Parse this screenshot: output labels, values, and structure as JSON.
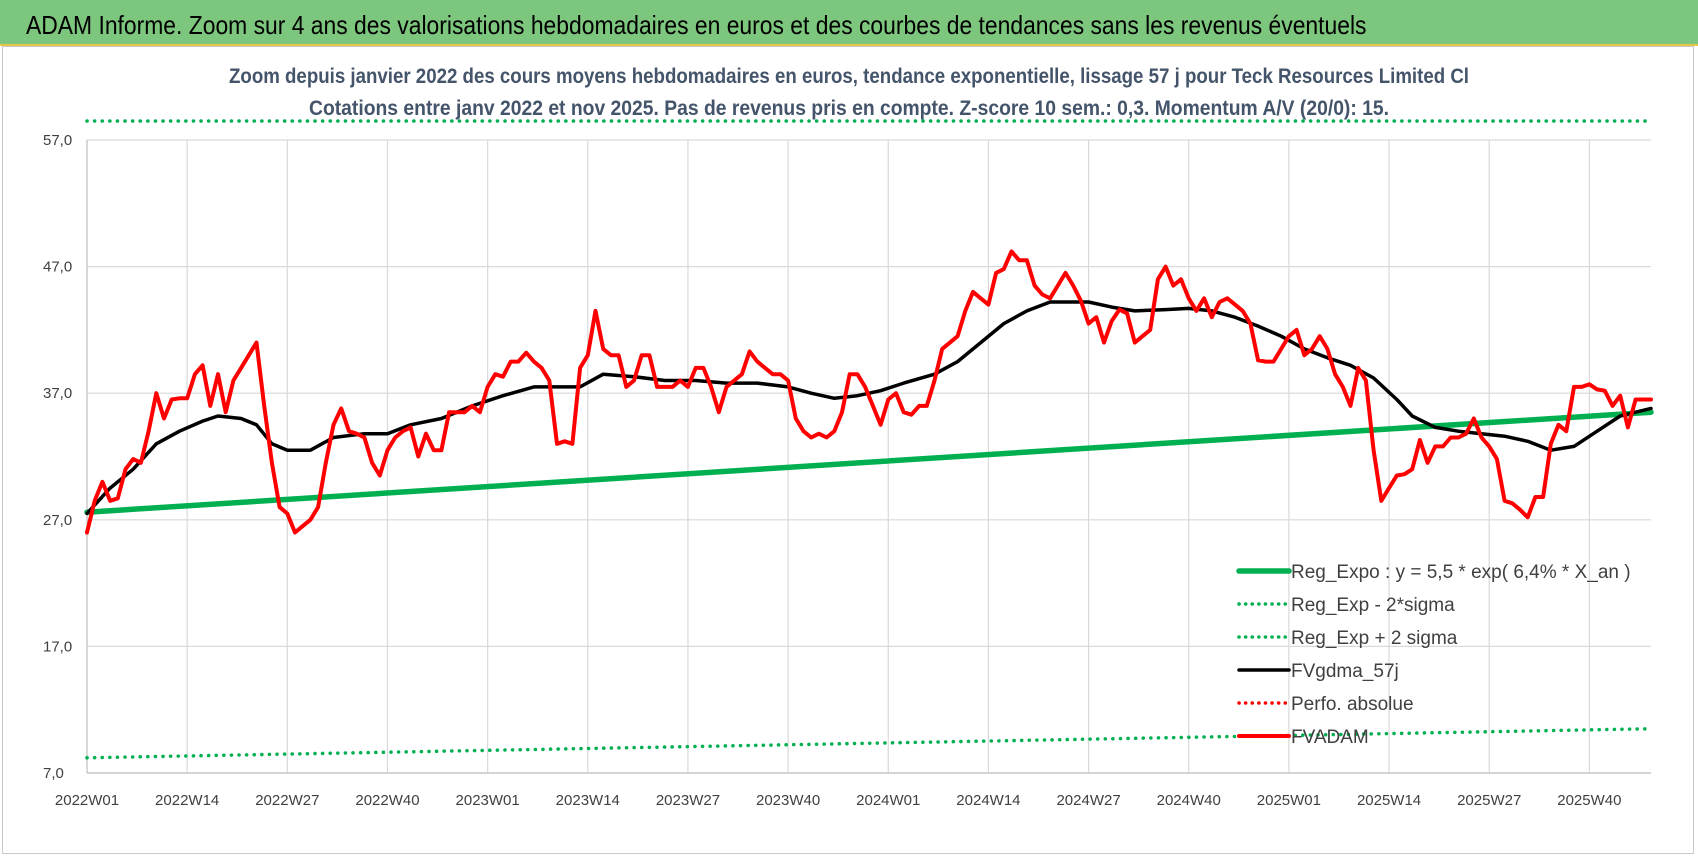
{
  "banner": {
    "title": "ADAM Informe. Zoom sur 4 ans des valorisations hebdomadaires en euros et des courbes de tendances sans les revenus éventuels"
  },
  "colors": {
    "banner_bg": "#7dc67d",
    "regression": "#00b050",
    "moving_avg": "#000000",
    "price": "#ff0000",
    "perf": "#ff0000",
    "subtitle": "#44546a",
    "grid": "#d9d9d9"
  },
  "chart_data": {
    "type": "line",
    "title_line1": "Zoom depuis janvier 2022 des cours moyens hebdomadaires en euros, tendance exponentielle, lissage 57 j pour Teck Resources Limited Cl",
    "title_line2": "Cotations entre janv 2022 et nov 2025. Pas de revenus pris en compte. Z-score 10 sem.: 0,3. Momentum A/V (20/0): 15.",
    "xlabel": "",
    "ylabel": "",
    "ylim": [
      7.0,
      57.0
    ],
    "y_ticks": [
      "57,0",
      "47,0",
      "37,0",
      "27,0",
      "17,0",
      "7,0"
    ],
    "y_tick_values": [
      57,
      47,
      37,
      27,
      17,
      7
    ],
    "x_range": [
      0,
      203
    ],
    "x_ticks": [
      "2022W01",
      "2022W14",
      "2022W27",
      "2022W40",
      "2023W01",
      "2023W14",
      "2023W27",
      "2023W40",
      "2024W01",
      "2024W14",
      "2024W27",
      "2024W40",
      "2025W01",
      "2025W14",
      "2025W27",
      "2025W40"
    ],
    "x_tick_positions": [
      0,
      13,
      26,
      39,
      52,
      65,
      78,
      91,
      104,
      117,
      130,
      143,
      156,
      169,
      182,
      195
    ],
    "legend_position": "bottom-right",
    "series": [
      {
        "name": "Reg_Expo : y = 5,5 * exp( 6,4% *  X_an )",
        "style": "solid-thick",
        "color": "#00b050",
        "points": [
          [
            0,
            27.6
          ],
          [
            203,
            35.5
          ]
        ]
      },
      {
        "name": "Reg_Exp - 2*sigma",
        "style": "dotted",
        "color": "#00b050",
        "points": [
          [
            0,
            8.2
          ],
          [
            203,
            10.5
          ]
        ]
      },
      {
        "name": "Reg_Exp + 2 sigma",
        "style": "dotted",
        "color": "#00b050",
        "points": [
          [
            0,
            58.5
          ],
          [
            203,
            58.5
          ]
        ]
      },
      {
        "name": "FVgdma_57j",
        "style": "solid",
        "color": "#000000",
        "points": [
          [
            0,
            27.5
          ],
          [
            3,
            29.5
          ],
          [
            6,
            31.0
          ],
          [
            9,
            33.0
          ],
          [
            12,
            34.0
          ],
          [
            15,
            34.8
          ],
          [
            17,
            35.2
          ],
          [
            20,
            35.0
          ],
          [
            22,
            34.5
          ],
          [
            24,
            33.0
          ],
          [
            26,
            32.5
          ],
          [
            29,
            32.5
          ],
          [
            32,
            33.5
          ],
          [
            36,
            33.8
          ],
          [
            39,
            33.8
          ],
          [
            42,
            34.5
          ],
          [
            46,
            35.0
          ],
          [
            50,
            36.0
          ],
          [
            54,
            36.8
          ],
          [
            58,
            37.5
          ],
          [
            61,
            37.5
          ],
          [
            64,
            37.5
          ],
          [
            67,
            38.5
          ],
          [
            71,
            38.3
          ],
          [
            75,
            38.0
          ],
          [
            79,
            38.0
          ],
          [
            83,
            37.8
          ],
          [
            87,
            37.8
          ],
          [
            91,
            37.5
          ],
          [
            94,
            37.0
          ],
          [
            97,
            36.6
          ],
          [
            100,
            36.8
          ],
          [
            103,
            37.2
          ],
          [
            106,
            37.8
          ],
          [
            110,
            38.5
          ],
          [
            113,
            39.5
          ],
          [
            116,
            41.0
          ],
          [
            119,
            42.5
          ],
          [
            122,
            43.5
          ],
          [
            125,
            44.2
          ],
          [
            127,
            44.2
          ],
          [
            130,
            44.2
          ],
          [
            133,
            43.8
          ],
          [
            136,
            43.5
          ],
          [
            140,
            43.6
          ],
          [
            143,
            43.7
          ],
          [
            146,
            43.5
          ],
          [
            149,
            43.0
          ],
          [
            152,
            42.3
          ],
          [
            155,
            41.5
          ],
          [
            158,
            40.5
          ],
          [
            161,
            39.8
          ],
          [
            164,
            39.2
          ],
          [
            167,
            38.2
          ],
          [
            170,
            36.5
          ],
          [
            172,
            35.2
          ],
          [
            175,
            34.3
          ],
          [
            178,
            34.0
          ],
          [
            181,
            33.8
          ],
          [
            184,
            33.6
          ],
          [
            187,
            33.2
          ],
          [
            190,
            32.5
          ],
          [
            193,
            32.8
          ],
          [
            196,
            34.0
          ],
          [
            199,
            35.2
          ],
          [
            201,
            35.5
          ],
          [
            203,
            35.8
          ]
        ]
      },
      {
        "name": "Perfo. absolue",
        "style": "dotted",
        "color": "#ff0000",
        "points": []
      },
      {
        "name": "FVADAM",
        "style": "solid-thick",
        "color": "#ff0000",
        "points": [
          [
            0,
            26.0
          ],
          [
            1,
            28.5
          ],
          [
            2,
            30.0
          ],
          [
            3,
            28.5
          ],
          [
            4,
            28.7
          ],
          [
            5,
            31.0
          ],
          [
            6,
            31.8
          ],
          [
            7,
            31.5
          ],
          [
            8,
            34.0
          ],
          [
            9,
            37.0
          ],
          [
            10,
            35.0
          ],
          [
            11,
            36.5
          ],
          [
            12,
            36.6
          ],
          [
            13,
            36.6
          ],
          [
            14,
            38.5
          ],
          [
            15,
            39.2
          ],
          [
            16,
            36.0
          ],
          [
            17,
            38.5
          ],
          [
            18,
            35.5
          ],
          [
            19,
            38.0
          ],
          [
            20,
            39.0
          ],
          [
            21,
            40.0
          ],
          [
            22,
            41.0
          ],
          [
            23,
            36.0
          ],
          [
            24,
            31.5
          ],
          [
            25,
            28.0
          ],
          [
            26,
            27.5
          ],
          [
            27,
            26.0
          ],
          [
            28,
            26.5
          ],
          [
            29,
            27.0
          ],
          [
            30,
            28.0
          ],
          [
            31,
            31.5
          ],
          [
            32,
            34.5
          ],
          [
            33,
            35.8
          ],
          [
            34,
            34.0
          ],
          [
            35,
            33.8
          ],
          [
            36,
            33.5
          ],
          [
            37,
            31.5
          ],
          [
            38,
            30.5
          ],
          [
            39,
            32.5
          ],
          [
            40,
            33.5
          ],
          [
            41,
            34.0
          ],
          [
            42,
            34.3
          ],
          [
            43,
            32.0
          ],
          [
            44,
            33.8
          ],
          [
            45,
            32.5
          ],
          [
            46,
            32.5
          ],
          [
            47,
            35.5
          ],
          [
            48,
            35.5
          ],
          [
            49,
            35.5
          ],
          [
            50,
            36.0
          ],
          [
            51,
            35.5
          ],
          [
            52,
            37.5
          ],
          [
            53,
            38.5
          ],
          [
            54,
            38.3
          ],
          [
            55,
            39.5
          ],
          [
            56,
            39.5
          ],
          [
            57,
            40.2
          ],
          [
            58,
            39.5
          ],
          [
            59,
            39.0
          ],
          [
            60,
            38.0
          ],
          [
            61,
            33.0
          ],
          [
            62,
            33.2
          ],
          [
            63,
            33.0
          ],
          [
            64,
            39.0
          ],
          [
            65,
            40.0
          ],
          [
            66,
            43.5
          ],
          [
            67,
            40.5
          ],
          [
            68,
            40.0
          ],
          [
            69,
            40.0
          ],
          [
            70,
            37.5
          ],
          [
            71,
            38.0
          ],
          [
            72,
            40.0
          ],
          [
            73,
            40.0
          ],
          [
            74,
            37.5
          ],
          [
            75,
            37.5
          ],
          [
            76,
            37.5
          ],
          [
            77,
            38.0
          ],
          [
            78,
            37.5
          ],
          [
            79,
            39.0
          ],
          [
            80,
            39.0
          ],
          [
            81,
            37.5
          ],
          [
            82,
            35.5
          ],
          [
            83,
            37.5
          ],
          [
            84,
            38.0
          ],
          [
            85,
            38.5
          ],
          [
            86,
            40.3
          ],
          [
            87,
            39.5
          ],
          [
            88,
            39.0
          ],
          [
            89,
            38.5
          ],
          [
            90,
            38.5
          ],
          [
            91,
            38.0
          ],
          [
            92,
            35.0
          ],
          [
            93,
            34.0
          ],
          [
            94,
            33.5
          ],
          [
            95,
            33.8
          ],
          [
            96,
            33.5
          ],
          [
            97,
            34.0
          ],
          [
            98,
            35.5
          ],
          [
            99,
            38.5
          ],
          [
            100,
            38.5
          ],
          [
            101,
            37.5
          ],
          [
            102,
            36.0
          ],
          [
            103,
            34.5
          ],
          [
            104,
            36.5
          ],
          [
            105,
            37.0
          ],
          [
            106,
            35.5
          ],
          [
            107,
            35.3
          ],
          [
            108,
            36.0
          ],
          [
            109,
            36.0
          ],
          [
            110,
            38.0
          ],
          [
            111,
            40.5
          ],
          [
            112,
            41.0
          ],
          [
            113,
            41.5
          ],
          [
            114,
            43.5
          ],
          [
            115,
            45.0
          ],
          [
            116,
            44.5
          ],
          [
            117,
            44.0
          ],
          [
            118,
            46.5
          ],
          [
            119,
            46.8
          ],
          [
            120,
            48.2
          ],
          [
            121,
            47.5
          ],
          [
            122,
            47.5
          ],
          [
            123,
            45.5
          ],
          [
            124,
            44.8
          ],
          [
            125,
            44.5
          ],
          [
            126,
            45.5
          ],
          [
            127,
            46.5
          ],
          [
            128,
            45.5
          ],
          [
            129,
            44.3
          ],
          [
            130,
            42.5
          ],
          [
            131,
            43.0
          ],
          [
            132,
            41.0
          ],
          [
            133,
            42.7
          ],
          [
            134,
            43.6
          ],
          [
            135,
            43.3
          ],
          [
            136,
            41.0
          ],
          [
            137,
            41.5
          ],
          [
            138,
            42.0
          ],
          [
            139,
            46.0
          ],
          [
            140,
            47.0
          ],
          [
            141,
            45.5
          ],
          [
            142,
            46.0
          ],
          [
            143,
            44.5
          ],
          [
            144,
            43.5
          ],
          [
            145,
            44.5
          ],
          [
            146,
            43.0
          ],
          [
            147,
            44.2
          ],
          [
            148,
            44.5
          ],
          [
            149,
            44.0
          ],
          [
            150,
            43.5
          ],
          [
            151,
            42.5
          ],
          [
            152,
            39.6
          ],
          [
            153,
            39.5
          ],
          [
            154,
            39.5
          ],
          [
            155,
            40.5
          ],
          [
            156,
            41.5
          ],
          [
            157,
            42.0
          ],
          [
            158,
            40.0
          ],
          [
            159,
            40.5
          ],
          [
            160,
            41.5
          ],
          [
            161,
            40.5
          ],
          [
            162,
            38.5
          ],
          [
            163,
            37.5
          ],
          [
            164,
            36.0
          ],
          [
            165,
            39.0
          ],
          [
            166,
            38.0
          ],
          [
            167,
            32.5
          ],
          [
            168,
            28.5
          ],
          [
            169,
            29.5
          ],
          [
            170,
            30.5
          ],
          [
            171,
            30.6
          ],
          [
            172,
            31.0
          ],
          [
            173,
            33.3
          ],
          [
            174,
            31.5
          ],
          [
            175,
            32.8
          ],
          [
            176,
            32.8
          ],
          [
            177,
            33.5
          ],
          [
            178,
            33.5
          ],
          [
            179,
            33.8
          ],
          [
            180,
            35.0
          ],
          [
            181,
            33.5
          ],
          [
            182,
            32.8
          ],
          [
            183,
            31.8
          ],
          [
            184,
            28.5
          ],
          [
            185,
            28.3
          ],
          [
            186,
            27.8
          ],
          [
            187,
            27.2
          ],
          [
            188,
            28.8
          ],
          [
            189,
            28.8
          ],
          [
            190,
            33.0
          ],
          [
            191,
            34.5
          ],
          [
            192,
            34.0
          ],
          [
            193,
            37.5
          ],
          [
            194,
            37.5
          ],
          [
            195,
            37.7
          ],
          [
            196,
            37.3
          ],
          [
            197,
            37.2
          ],
          [
            198,
            36.0
          ],
          [
            199,
            36.8
          ],
          [
            200,
            34.3
          ],
          [
            201,
            36.5
          ],
          [
            203,
            36.5
          ]
        ]
      }
    ]
  }
}
